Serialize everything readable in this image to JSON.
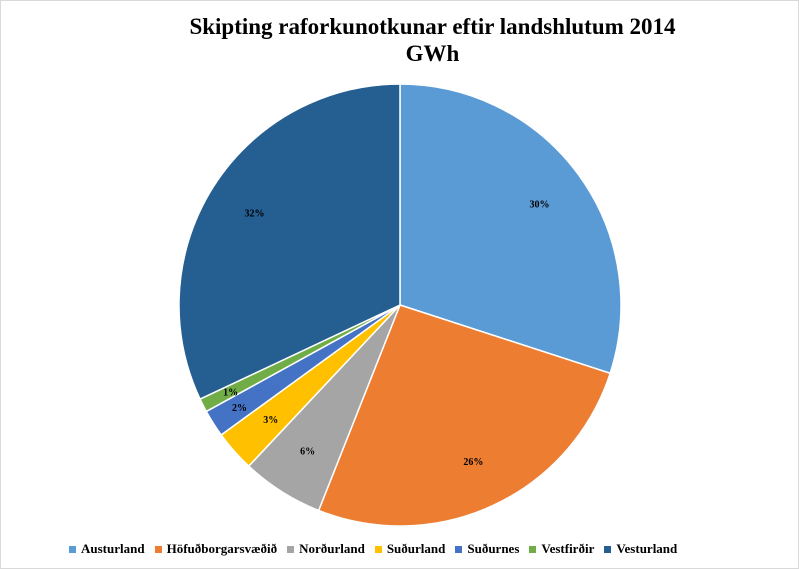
{
  "chart_data": {
    "type": "pie",
    "title": "Skipting raforkunotkunar eftir landshlutum 2014",
    "subtitle": "GWh",
    "legend_position": "bottom",
    "slices": [
      {
        "name": "Austurland",
        "value": 30,
        "label": "30%",
        "color": "#5b9bd5"
      },
      {
        "name": "Höfuðborgarsvæðið",
        "value": 26,
        "label": "26%",
        "color": "#ed7d31"
      },
      {
        "name": "Norðurland",
        "value": 6,
        "label": "6%",
        "color": "#a5a5a5"
      },
      {
        "name": "Suðurland",
        "value": 3,
        "label": "3%",
        "color": "#ffc000"
      },
      {
        "name": "Suðurnes",
        "value": 2,
        "label": "2%",
        "color": "#4472c4"
      },
      {
        "name": "Vestfirðir",
        "value": 1,
        "label": "1%",
        "color": "#70ad47"
      },
      {
        "name": "Vesturland",
        "value": 32,
        "label": "32%",
        "color": "#255e91"
      }
    ]
  }
}
